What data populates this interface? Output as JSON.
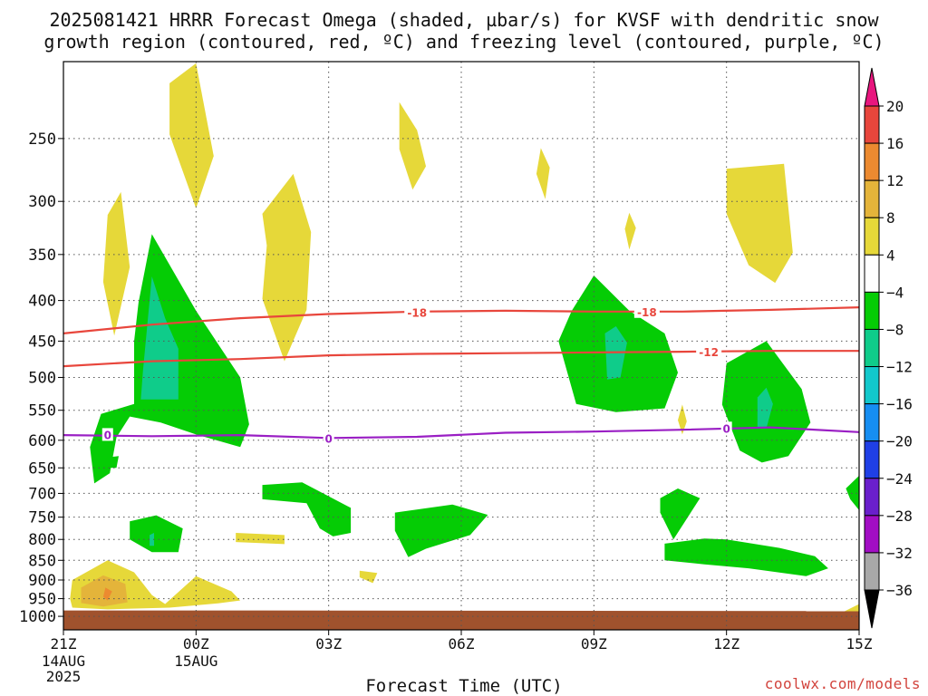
{
  "title": {
    "line1": "2025081421 HRRR Forecast Omega (shaded, µbar/s) for KVSF with dendritic snow",
    "line2": "growth region (contoured, red, ºC) and freezing level (contoured, purple, ºC)"
  },
  "xlabel": "Forecast Time (UTC)",
  "credit": "coolwx.com/models",
  "chart_data": {
    "type": "heatmap",
    "x_axis": {
      "label": "Forecast Time (UTC)",
      "range": [
        0,
        18
      ],
      "unit": "forecast hour",
      "ticks": [
        {
          "x": 0,
          "label": "21Z",
          "sub": [
            "14AUG",
            "2025"
          ]
        },
        {
          "x": 3,
          "label": "00Z",
          "sub": [
            "15AUG"
          ]
        },
        {
          "x": 6,
          "label": "03Z",
          "sub": []
        },
        {
          "x": 9,
          "label": "06Z",
          "sub": []
        },
        {
          "x": 12,
          "label": "09Z",
          "sub": []
        },
        {
          "x": 15,
          "label": "12Z",
          "sub": []
        },
        {
          "x": 18,
          "label": "15Z",
          "sub": []
        }
      ]
    },
    "y_axis": {
      "range": [
        200,
        1040
      ],
      "scale": "log",
      "inverted": true,
      "ticks": [
        250,
        300,
        350,
        400,
        450,
        500,
        550,
        600,
        650,
        700,
        750,
        800,
        850,
        900,
        950,
        1000
      ]
    },
    "grid": true,
    "colorbar": {
      "unit": "µbar/s",
      "bins": [
        {
          "from": 16,
          "to": 20,
          "color": "#e8463c"
        },
        {
          "from": 12,
          "to": 16,
          "color": "#ec8a30"
        },
        {
          "from": 8,
          "to": 12,
          "color": "#e4b43a"
        },
        {
          "from": 4,
          "to": 8,
          "color": "#e6d839"
        },
        {
          "from": -4,
          "to": 4,
          "color": "#ffffff"
        },
        {
          "from": -8,
          "to": -4,
          "color": "#05cc05"
        },
        {
          "from": -12,
          "to": -8,
          "color": "#0fcc8a"
        },
        {
          "from": -16,
          "to": -12,
          "color": "#12c8cc"
        },
        {
          "from": -20,
          "to": -16,
          "color": "#168ef2"
        },
        {
          "from": -24,
          "to": -20,
          "color": "#1f3fe6"
        },
        {
          "from": -28,
          "to": -24,
          "color": "#6a1fcc"
        },
        {
          "from": -32,
          "to": -28,
          "color": "#a20ec4"
        },
        {
          "from": -36,
          "to": -32,
          "color": "#a8a8a8"
        }
      ],
      "labels": [
        20,
        16,
        12,
        8,
        4,
        -4,
        -8,
        -12,
        -16,
        -20,
        -24,
        -28,
        -32,
        -36
      ],
      "max_arrow_color": "#e8167e",
      "min_arrow_color": "#000000"
    },
    "shaded_regions": [
      {
        "value_bin": "4 to 8",
        "color": "#e6d839",
        "points": [
          [
            2.4,
            213
          ],
          [
            3.0,
            201
          ],
          [
            3.4,
            263
          ],
          [
            3.0,
            306
          ],
          [
            2.4,
            247
          ]
        ]
      },
      {
        "value_bin": "4 to 8",
        "color": "#e6d839",
        "points": [
          [
            1.0,
            312
          ],
          [
            1.3,
            292
          ],
          [
            1.5,
            363
          ],
          [
            1.15,
            443
          ],
          [
            0.9,
            379
          ]
        ]
      },
      {
        "value_bin": "4 to 8",
        "color": "#e6d839",
        "points": [
          [
            4.5,
            311
          ],
          [
            5.2,
            277
          ],
          [
            5.6,
            328
          ],
          [
            5.5,
            411
          ],
          [
            5.0,
            477
          ],
          [
            4.5,
            398
          ],
          [
            4.6,
            341
          ]
        ]
      },
      {
        "value_bin": "4 to 8",
        "color": "#e6d839",
        "points": [
          [
            7.6,
            225
          ],
          [
            8.0,
            244
          ],
          [
            8.2,
            271
          ],
          [
            7.9,
            290
          ],
          [
            7.6,
            258
          ]
        ]
      },
      {
        "value_bin": "4 to 8",
        "color": "#e6d839",
        "points": [
          [
            10.8,
            257
          ],
          [
            11.0,
            272
          ],
          [
            10.9,
            298
          ],
          [
            10.7,
            277
          ]
        ]
      },
      {
        "value_bin": "4 to 8",
        "color": "#e6d839",
        "points": [
          [
            12.8,
            310
          ],
          [
            12.95,
            324
          ],
          [
            12.8,
            345
          ],
          [
            12.7,
            325
          ]
        ]
      },
      {
        "value_bin": "4 to 8",
        "color": "#e6d839",
        "points": [
          [
            15.0,
            273
          ],
          [
            16.3,
            269
          ],
          [
            16.5,
            348
          ],
          [
            16.1,
            380
          ],
          [
            15.5,
            361
          ],
          [
            15.0,
            311
          ]
        ]
      },
      {
        "value_bin": "4 to 8",
        "color": "#e6d839",
        "points": [
          [
            14.0,
            541
          ],
          [
            14.1,
            568
          ],
          [
            14.0,
            590
          ],
          [
            13.9,
            566
          ]
        ]
      },
      {
        "value_bin": "4 to 8",
        "color": "#e6d839",
        "points": [
          [
            3.9,
            785
          ],
          [
            5.0,
            790
          ],
          [
            5.0,
            811
          ],
          [
            3.9,
            806
          ]
        ]
      },
      {
        "value_bin": "4 to 8",
        "color": "#e6d839",
        "points": [
          [
            6.7,
            876
          ],
          [
            7.1,
            882
          ],
          [
            7.0,
            908
          ],
          [
            6.7,
            893
          ]
        ]
      },
      {
        "value_bin": "4 to 8",
        "color": "#e6d839",
        "points": [
          [
            0.2,
            900
          ],
          [
            1.0,
            850
          ],
          [
            1.6,
            880
          ],
          [
            2.0,
            940
          ],
          [
            2.3,
            965
          ],
          [
            3.0,
            890
          ],
          [
            3.8,
            930
          ],
          [
            4.0,
            955
          ],
          [
            3.5,
            963
          ],
          [
            2.4,
            975
          ],
          [
            1.0,
            980
          ],
          [
            0.2,
            975
          ],
          [
            0.15,
            950
          ]
        ]
      },
      {
        "value_bin": "4 to 8",
        "color": "#e6d839",
        "points": [
          [
            17.6,
            990
          ],
          [
            18.0,
            965
          ],
          [
            18.0,
            995
          ]
        ]
      },
      {
        "value_bin": "8 to 12",
        "color": "#e4b43a",
        "points": [
          [
            0.4,
            920
          ],
          [
            0.9,
            888
          ],
          [
            1.4,
            910
          ],
          [
            1.45,
            960
          ],
          [
            0.9,
            972
          ],
          [
            0.4,
            962
          ]
        ]
      },
      {
        "value_bin": "12 to 16",
        "color": "#ec8a30",
        "points": [
          [
            0.95,
            920
          ],
          [
            1.1,
            930
          ],
          [
            1.0,
            955
          ],
          [
            0.9,
            945
          ]
        ]
      },
      {
        "value_bin": "-4 to -8",
        "color": "#05cc05",
        "points": [
          [
            1.7,
            402
          ],
          [
            2.0,
            330
          ],
          [
            3.0,
            412
          ],
          [
            4.0,
            500
          ],
          [
            4.2,
            573
          ],
          [
            4.0,
            612
          ],
          [
            3.0,
            590
          ],
          [
            2.2,
            570
          ],
          [
            1.5,
            560
          ],
          [
            1.2,
            595
          ],
          [
            1.05,
            660
          ],
          [
            0.7,
            680
          ],
          [
            0.6,
            612
          ],
          [
            0.85,
            556
          ],
          [
            1.6,
            540
          ],
          [
            1.6,
            450
          ]
        ]
      },
      {
        "value_bin": "-4 to -8",
        "color": "#05cc05",
        "points": [
          [
            11.5,
            412
          ],
          [
            12.0,
            372
          ],
          [
            12.8,
            412
          ],
          [
            13.6,
            440
          ],
          [
            13.9,
            493
          ],
          [
            13.6,
            547
          ],
          [
            12.5,
            553
          ],
          [
            11.6,
            540
          ],
          [
            11.2,
            450
          ]
        ]
      },
      {
        "value_bin": "-4 to -8",
        "color": "#05cc05",
        "points": [
          [
            15.0,
            480
          ],
          [
            15.9,
            450
          ],
          [
            16.7,
            517
          ],
          [
            16.9,
            570
          ],
          [
            16.4,
            628
          ],
          [
            15.8,
            640
          ],
          [
            15.3,
            618
          ],
          [
            14.9,
            541
          ]
        ]
      },
      {
        "value_bin": "-4 to -8",
        "color": "#05cc05",
        "points": [
          [
            1.5,
            759
          ],
          [
            2.1,
            746
          ],
          [
            2.7,
            775
          ],
          [
            2.6,
            830
          ],
          [
            2.0,
            830
          ],
          [
            1.5,
            800
          ]
        ]
      },
      {
        "value_bin": "-4 to -8",
        "color": "#05cc05",
        "points": [
          [
            4.5,
            683
          ],
          [
            5.4,
            678
          ],
          [
            6.5,
            730
          ],
          [
            6.5,
            785
          ],
          [
            6.1,
            793
          ],
          [
            5.8,
            775
          ],
          [
            5.5,
            720
          ],
          [
            4.5,
            712
          ]
        ]
      },
      {
        "value_bin": "-4 to -8",
        "color": "#05cc05",
        "points": [
          [
            7.5,
            740
          ],
          [
            8.8,
            723
          ],
          [
            9.6,
            745
          ],
          [
            9.2,
            790
          ],
          [
            8.2,
            822
          ],
          [
            7.8,
            842
          ],
          [
            7.5,
            780
          ]
        ]
      },
      {
        "value_bin": "-4 to -8",
        "color": "#05cc05",
        "points": [
          [
            13.5,
            710
          ],
          [
            13.9,
            690
          ],
          [
            14.4,
            710
          ],
          [
            13.8,
            800
          ],
          [
            13.5,
            740
          ]
        ]
      },
      {
        "value_bin": "-4 to -8",
        "color": "#05cc05",
        "points": [
          [
            13.6,
            810
          ],
          [
            14.5,
            798
          ],
          [
            15.0,
            800
          ],
          [
            16.2,
            820
          ],
          [
            17.0,
            840
          ],
          [
            17.3,
            870
          ],
          [
            16.8,
            890
          ],
          [
            15.5,
            870
          ],
          [
            14.5,
            860
          ],
          [
            13.6,
            850
          ]
        ]
      },
      {
        "value_bin": "-4 to -8",
        "color": "#05cc05",
        "points": [
          [
            17.7,
            690
          ],
          [
            18.0,
            665
          ],
          [
            18.0,
            735
          ],
          [
            17.8,
            712
          ]
        ]
      },
      {
        "value_bin": "-4 to -8",
        "color": "#05cc05",
        "points": [
          [
            1.05,
            630
          ],
          [
            1.25,
            628
          ],
          [
            1.2,
            650
          ],
          [
            1.05,
            650
          ]
        ]
      },
      {
        "value_bin": "-8 to -12",
        "color": "#0fcc8a",
        "points": [
          [
            1.8,
            490
          ],
          [
            2.0,
            373
          ],
          [
            2.3,
            421
          ],
          [
            2.6,
            460
          ],
          [
            2.6,
            533
          ],
          [
            2.2,
            533
          ],
          [
            1.75,
            533
          ]
        ]
      },
      {
        "value_bin": "-8 to -12",
        "color": "#0fcc8a",
        "points": [
          [
            12.25,
            440
          ],
          [
            12.5,
            431
          ],
          [
            12.75,
            452
          ],
          [
            12.6,
            500
          ],
          [
            12.3,
            503
          ]
        ]
      },
      {
        "value_bin": "-8 to -12",
        "color": "#0fcc8a",
        "points": [
          [
            15.7,
            530
          ],
          [
            15.9,
            515
          ],
          [
            16.05,
            540
          ],
          [
            15.9,
            580
          ],
          [
            15.7,
            580
          ]
        ]
      },
      {
        "value_bin": "-8 to -12",
        "color": "#0fcc8a",
        "points": [
          [
            1.95,
            790
          ],
          [
            2.05,
            785
          ],
          [
            2.05,
            815
          ],
          [
            1.95,
            815
          ]
        ]
      }
    ],
    "surface": {
      "name": "terrain",
      "color": "#a0522d",
      "points": [
        [
          0,
          983
        ],
        [
          4.5,
          983
        ],
        [
          18,
          985
        ],
        [
          18,
          1040
        ],
        [
          0,
          1040
        ]
      ]
    },
    "contours": [
      {
        "variable": "temperature",
        "level": -18,
        "label": "-18",
        "color": "#e8463c",
        "points": [
          [
            0,
            440
          ],
          [
            2,
            429
          ],
          [
            4,
            421
          ],
          [
            6,
            416
          ],
          [
            8,
            413
          ],
          [
            10,
            412
          ],
          [
            12,
            413
          ],
          [
            14,
            413
          ],
          [
            16,
            411
          ],
          [
            18,
            408
          ]
        ]
      },
      {
        "variable": "temperature",
        "level": -12,
        "label": "-12",
        "color": "#e8463c",
        "points": [
          [
            0,
            484
          ],
          [
            2,
            477
          ],
          [
            4,
            474
          ],
          [
            6,
            469
          ],
          [
            8,
            467
          ],
          [
            10,
            466
          ],
          [
            12,
            465
          ],
          [
            14,
            464
          ],
          [
            16,
            463
          ],
          [
            18,
            463
          ]
        ]
      },
      {
        "variable": "temperature",
        "level": 0,
        "label": "0",
        "color": "#9a1fc4",
        "points": [
          [
            0,
            591
          ],
          [
            2,
            593
          ],
          [
            4,
            591
          ],
          [
            6,
            596
          ],
          [
            8,
            594
          ],
          [
            10,
            587
          ],
          [
            12,
            585
          ],
          [
            14,
            582
          ],
          [
            16,
            578
          ],
          [
            18,
            586
          ]
        ]
      }
    ],
    "contour_labels": [
      {
        "text": "-18",
        "x": 8.0,
        "y": 414,
        "color": "#e8463c"
      },
      {
        "text": "-18",
        "x": 13.2,
        "y": 413,
        "color": "#e8463c"
      },
      {
        "text": "-12",
        "x": 14.6,
        "y": 464,
        "color": "#e8463c"
      },
      {
        "text": "0",
        "x": 1.0,
        "y": 590,
        "color": "#9a1fc4"
      },
      {
        "text": "0",
        "x": 6.0,
        "y": 596,
        "color": "#9a1fc4"
      },
      {
        "text": "0",
        "x": 15.0,
        "y": 579,
        "color": "#9a1fc4"
      }
    ]
  }
}
